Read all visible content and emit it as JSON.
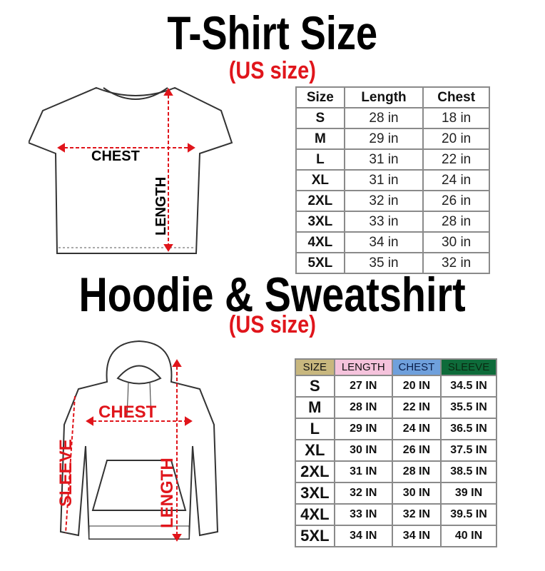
{
  "tshirt": {
    "title": "T-Shirt Size",
    "subtitle": "(US size)",
    "diagram_labels": {
      "chest": "CHEST",
      "length": "LENGTH"
    },
    "table": {
      "headers": [
        "Size",
        "Length",
        "Chest"
      ],
      "rows": [
        [
          "S",
          "28 in",
          "18 in"
        ],
        [
          "M",
          "29 in",
          "20 in"
        ],
        [
          "L",
          "31 in",
          "22 in"
        ],
        [
          "XL",
          "31 in",
          "24 in"
        ],
        [
          "2XL",
          "32 in",
          "26 in"
        ],
        [
          "3XL",
          "33 in",
          "28 in"
        ],
        [
          "4XL",
          "34 in",
          "30 in"
        ],
        [
          "5XL",
          "35 in",
          "32 in"
        ]
      ]
    }
  },
  "hoodie": {
    "title": "Hoodie & Sweatshirt",
    "subtitle": "(US size)",
    "diagram_labels": {
      "chest": "CHEST",
      "length": "LENGTH",
      "sleeve": "SLEEVE"
    },
    "table": {
      "headers": [
        "SIZE",
        "LENGTH",
        "CHEST",
        "SLEEVE"
      ],
      "header_colors": [
        "#c8b77e",
        "#f5c3dc",
        "#6fa0dc",
        "#0e6b3a"
      ],
      "rows": [
        [
          "S",
          "27 IN",
          "20 IN",
          "34.5 IN"
        ],
        [
          "M",
          "28 IN",
          "22 IN",
          "35.5 IN"
        ],
        [
          "L",
          "29 IN",
          "24 IN",
          "36.5 IN"
        ],
        [
          "XL",
          "30 IN",
          "26 IN",
          "37.5 IN"
        ],
        [
          "2XL",
          "31 IN",
          "28 IN",
          "38.5 IN"
        ],
        [
          "3XL",
          "32 IN",
          "30 IN",
          "39 IN"
        ],
        [
          "4XL",
          "33 IN",
          "32 IN",
          "39.5 IN"
        ],
        [
          "5XL",
          "34 IN",
          "34 IN",
          "40 IN"
        ]
      ]
    }
  },
  "colors": {
    "accent_red": "#e0151b"
  }
}
